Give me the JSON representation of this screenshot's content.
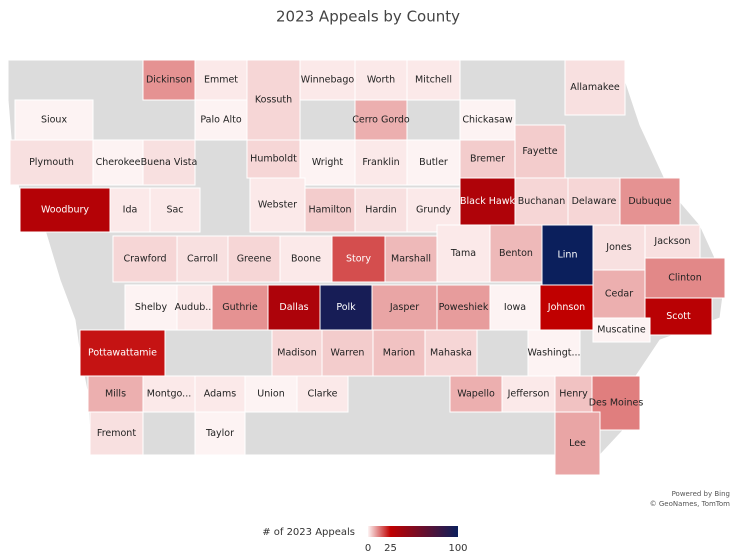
{
  "title": "2023 Appeals by County",
  "counties": [
    {
      "name": "Dickinson",
      "value": 10
    },
    {
      "name": "Emmet",
      "value": 1
    },
    {
      "name": "Kossuth",
      "value": 3
    },
    {
      "name": "Winnebago",
      "value": 1
    },
    {
      "name": "Worth",
      "value": 1
    },
    {
      "name": "Mitchell",
      "value": 1
    },
    {
      "name": "Allamakee",
      "value": 2
    },
    {
      "name": "Sioux",
      "value": 0
    },
    {
      "name": "Palo Alto",
      "value": 0
    },
    {
      "name": "Cerro Gordo",
      "value": 7
    },
    {
      "name": "Chickasaw",
      "value": 0
    },
    {
      "name": "Plymouth",
      "value": 2
    },
    {
      "name": "Cherokee",
      "value": 0
    },
    {
      "name": "Buena Vista",
      "value": 2
    },
    {
      "name": "Humboldt",
      "value": 3
    },
    {
      "name": "Wright",
      "value": 0
    },
    {
      "name": "Franklin",
      "value": 1
    },
    {
      "name": "Butler",
      "value": 0
    },
    {
      "name": "Bremer",
      "value": 4
    },
    {
      "name": "Fayette",
      "value": 4
    },
    {
      "name": "Woodbury",
      "value": 30
    },
    {
      "name": "Ida",
      "value": 1
    },
    {
      "name": "Sac",
      "value": 1
    },
    {
      "name": "Webster",
      "value": 1
    },
    {
      "name": "Hamilton",
      "value": 4
    },
    {
      "name": "Hardin",
      "value": 2
    },
    {
      "name": "Grundy",
      "value": 1
    },
    {
      "name": "Black Hawk",
      "value": 32
    },
    {
      "name": "Buchanan",
      "value": 3
    },
    {
      "name": "Delaware",
      "value": 3
    },
    {
      "name": "Dubuque",
      "value": 10
    },
    {
      "name": "Crawford",
      "value": 3
    },
    {
      "name": "Carroll",
      "value": 2
    },
    {
      "name": "Greene",
      "value": 3
    },
    {
      "name": "Boone",
      "value": 1
    },
    {
      "name": "Story",
      "value": 17
    },
    {
      "name": "Marshall",
      "value": 6
    },
    {
      "name": "Tama",
      "value": 1
    },
    {
      "name": "Benton",
      "value": 6
    },
    {
      "name": "Linn",
      "value": 100
    },
    {
      "name": "Jones",
      "value": 2
    },
    {
      "name": "Jackson",
      "value": 2
    },
    {
      "name": "Shelby",
      "value": 0
    },
    {
      "name": "Audub...",
      "value": 1
    },
    {
      "name": "Guthrie",
      "value": 10
    },
    {
      "name": "Dallas",
      "value": 33
    },
    {
      "name": "Polk",
      "value": 95
    },
    {
      "name": "Jasper",
      "value": 8
    },
    {
      "name": "Poweshiek",
      "value": 9
    },
    {
      "name": "Iowa",
      "value": 0
    },
    {
      "name": "Johnson",
      "value": 25
    },
    {
      "name": "Cedar",
      "value": 7
    },
    {
      "name": "Clinton",
      "value": 11
    },
    {
      "name": "Scott",
      "value": 28
    },
    {
      "name": "Muscatine",
      "value": 0
    },
    {
      "name": "Pottawattamie",
      "value": 23
    },
    {
      "name": "Madison",
      "value": 3
    },
    {
      "name": "Warren",
      "value": 4
    },
    {
      "name": "Marion",
      "value": 5
    },
    {
      "name": "Mahaska",
      "value": 3
    },
    {
      "name": "Washingt...",
      "value": 0
    },
    {
      "name": "Mills",
      "value": 7
    },
    {
      "name": "Montgo...",
      "value": 1
    },
    {
      "name": "Adams",
      "value": 1
    },
    {
      "name": "Union",
      "value": 0
    },
    {
      "name": "Clarke",
      "value": 1
    },
    {
      "name": "Wapello",
      "value": 7
    },
    {
      "name": "Jefferson",
      "value": 1
    },
    {
      "name": "Henry",
      "value": 5
    },
    {
      "name": "Des Moines",
      "value": 12
    },
    {
      "name": "Fremont",
      "value": 2
    },
    {
      "name": "Taylor",
      "value": 0
    },
    {
      "name": "Lee",
      "value": 8
    }
  ],
  "legend": {
    "title": "# of 2023 Appeals",
    "ticks": [
      0,
      25,
      100
    ],
    "colors": [
      "#fdf3f3",
      "#c00000",
      "#0b1f5c"
    ]
  },
  "attribution": [
    "Powered by Bing",
    "© GeoNames, TomTom"
  ]
}
